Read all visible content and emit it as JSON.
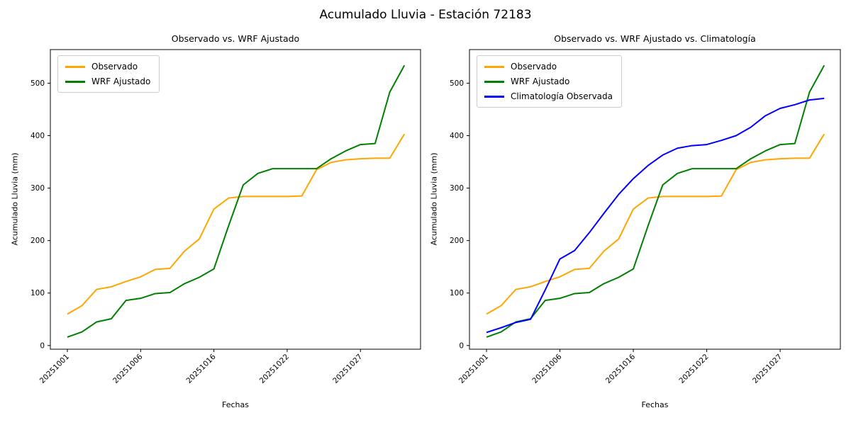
{
  "suptitle": "Acumulado Lluvia - Estación 72183",
  "charts": [
    {
      "title": "Observado vs. WRF Ajustado",
      "xlabel": "Fechas",
      "ylabel": "Acumulado Lluvia (mm)",
      "legend_entries": [
        "Observado",
        "WRF Ajustado"
      ],
      "series_refs": [
        0,
        1
      ]
    },
    {
      "title": "Observado vs. WRF Ajustado vs. Climatología",
      "xlabel": "Fechas",
      "ylabel": "Acumulado Lluvia (mm)",
      "legend_entries": [
        "Observado",
        "WRF Ajustado",
        "Climatología Observada"
      ],
      "series_refs": [
        0,
        1,
        2
      ]
    }
  ],
  "chart_data": {
    "type": "line",
    "n_points": 24,
    "x": [
      0,
      1,
      2,
      3,
      4,
      5,
      6,
      7,
      8,
      9,
      10,
      11,
      12,
      13,
      14,
      15,
      16,
      17,
      18,
      19,
      20,
      21,
      22,
      23
    ],
    "x_ticks": [
      {
        "index": 0,
        "label": "20251001"
      },
      {
        "index": 5,
        "label": "20251006"
      },
      {
        "index": 10,
        "label": "20251016"
      },
      {
        "index": 15,
        "label": "20251022"
      },
      {
        "index": 20,
        "label": "20251027"
      }
    ],
    "yticks": [
      0,
      100,
      200,
      300,
      400,
      500
    ],
    "ylim": [
      -7,
      564
    ],
    "xlim": [
      -1.16,
      24.1
    ],
    "grid": false,
    "legend_position": "upper-left",
    "series": [
      {
        "name": "Observado",
        "color": "#FFA500",
        "values": [
          60,
          76,
          107,
          112,
          122,
          131,
          145,
          147,
          180,
          203,
          260,
          281,
          284,
          284,
          284,
          284,
          285,
          335,
          349,
          354,
          356,
          357,
          357,
          403
        ]
      },
      {
        "name": "WRF Ajustado",
        "color": "#008000",
        "values": [
          16,
          26,
          45,
          51,
          86,
          90,
          99,
          101,
          118,
          130,
          146,
          228,
          306,
          328,
          337,
          337,
          337,
          337,
          356,
          371,
          383,
          385,
          483,
          534
        ]
      },
      {
        "name": "Climatología Observada",
        "color": "#0000FF",
        "values": [
          25,
          34,
          44,
          50,
          106,
          165,
          181,
          215,
          252,
          288,
          318,
          343,
          363,
          376,
          381,
          383,
          391,
          400,
          416,
          438,
          452,
          459,
          468,
          471
        ]
      }
    ]
  }
}
